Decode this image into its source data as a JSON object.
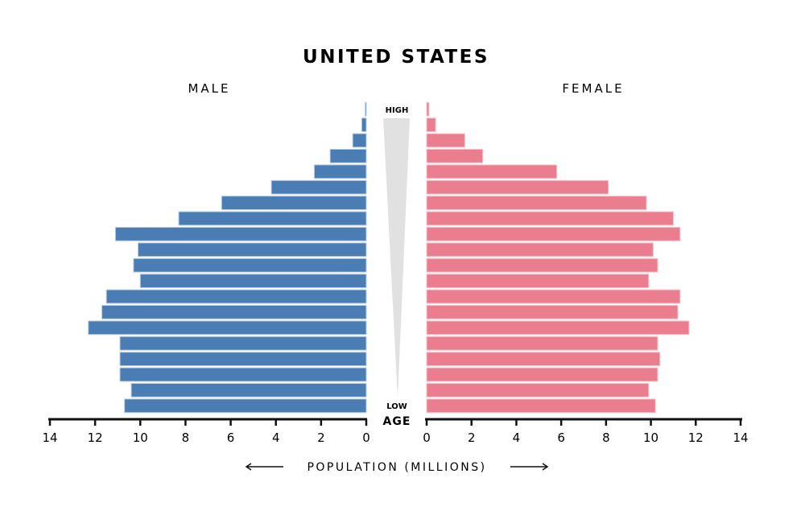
{
  "chart_data": {
    "type": "bar",
    "subtype": "population-pyramid",
    "title": "UNITED STATES",
    "left_label": "MALE",
    "right_label": "FEMALE",
    "age_axis": {
      "label": "AGE",
      "high_label": "HIGH",
      "low_label": "LOW"
    },
    "xlabel": "POPULATION (MILLIONS)",
    "xlim": [
      0,
      14
    ],
    "x_ticks": [
      14,
      12,
      10,
      8,
      6,
      4,
      2,
      0
    ],
    "x_ticks_right": [
      0,
      2,
      4,
      6,
      8,
      10,
      12,
      14
    ],
    "age_order": "youngest-first",
    "series": [
      {
        "name": "MALE",
        "color": "#4a7db4",
        "values": [
          10.7,
          10.4,
          10.9,
          10.9,
          10.9,
          12.3,
          11.7,
          11.5,
          10.0,
          10.3,
          10.1,
          11.1,
          8.3,
          6.4,
          4.2,
          2.3,
          1.6,
          0.6,
          0.2,
          0.05
        ]
      },
      {
        "name": "FEMALE",
        "color": "#eb7e8e",
        "values": [
          10.2,
          9.9,
          10.3,
          10.4,
          10.3,
          11.7,
          11.2,
          11.3,
          9.9,
          10.3,
          10.1,
          11.3,
          11.0,
          9.8,
          8.1,
          5.8,
          2.5,
          1.7,
          0.4,
          0.1
        ]
      }
    ],
    "grid": false
  }
}
